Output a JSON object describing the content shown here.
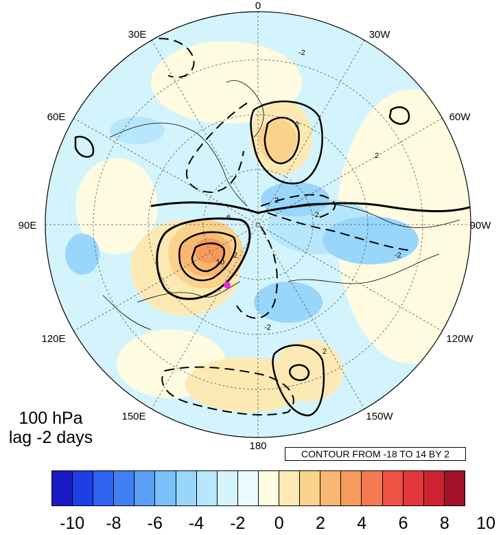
{
  "title": {
    "line1": "100 hPa",
    "line2": "lag -2 days"
  },
  "contour_info": "CONTOUR FROM -18 TO 14 BY 2",
  "longitude_labels": [
    "0",
    "30W",
    "60W",
    "90W",
    "120W",
    "150W",
    "180",
    "150E",
    "120E",
    "90E",
    "60E",
    "30E"
  ],
  "colorbar": {
    "colors": [
      "#1a19c4",
      "#1e3fe6",
      "#2f62f0",
      "#3f80f5",
      "#5aa0f7",
      "#79bff9",
      "#98d6fb",
      "#b6e7fc",
      "#d3f4fc",
      "#eafcfd",
      "#fffbe0",
      "#fde9b3",
      "#fbd28c",
      "#f8b871",
      "#f69b5c",
      "#f47950",
      "#ef5244",
      "#e2373c",
      "#cc2232",
      "#a3102a"
    ],
    "tick_labels": [
      "-10",
      "-8",
      "-6",
      "-4",
      "-2",
      "0",
      "2",
      "4",
      "6",
      "8",
      "10"
    ]
  },
  "map_data": {
    "projection": "north-polar-stereographic",
    "contour_min": -18,
    "contour_max": 14,
    "contour_step": 2,
    "contour_labels": [
      "-2",
      "2",
      "2",
      "-2",
      "2",
      "6",
      "10",
      "2",
      "-2",
      "-2",
      "2"
    ],
    "marker_color": "#e62ad7"
  }
}
